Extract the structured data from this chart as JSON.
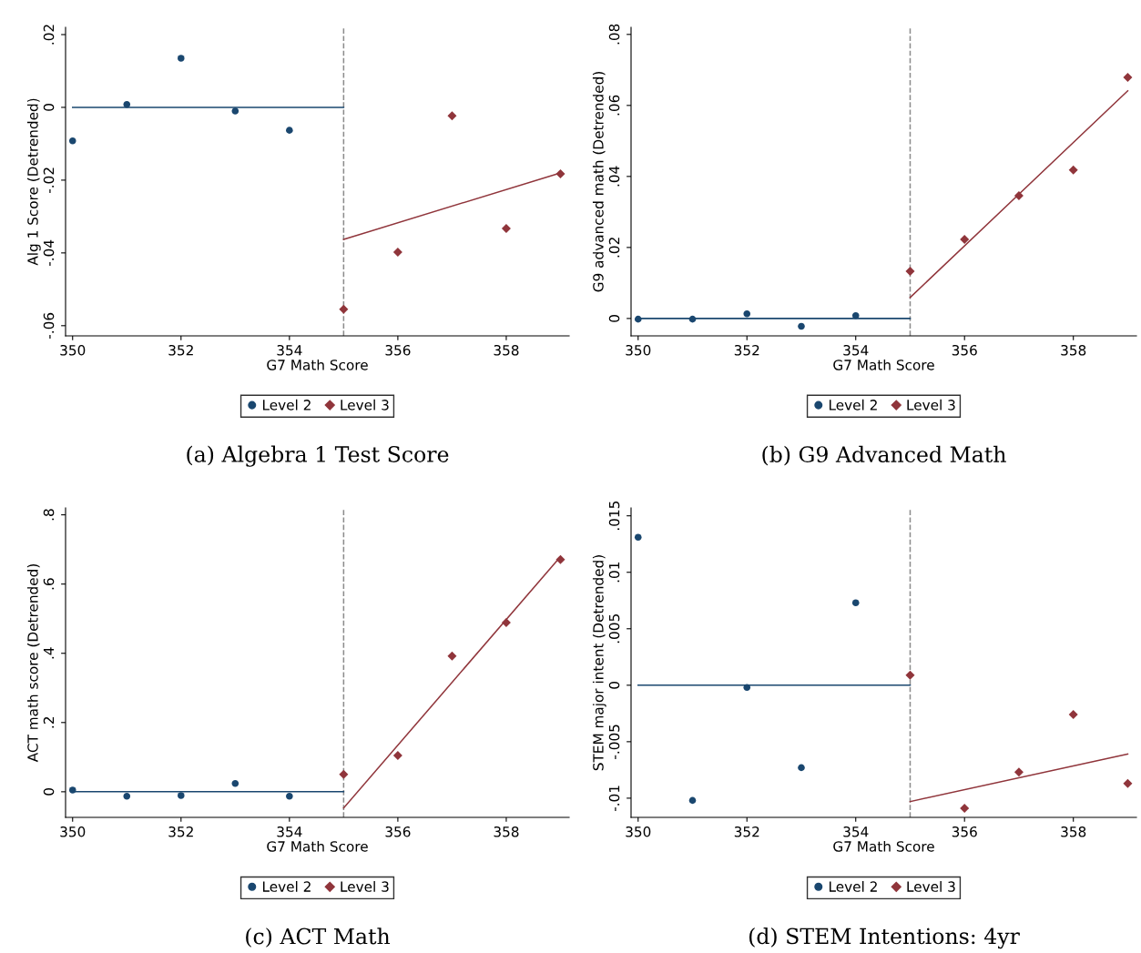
{
  "chart_data": [
    {
      "type": "scatter",
      "title": "(a) Algebra 1 Test Score",
      "xlabel": "G7 Math Score",
      "ylabel": "Alg 1 Score (Detrended)",
      "xlim": [
        349.87,
        359.16
      ],
      "ylim": [
        -0.0628,
        0.022
      ],
      "xticks": [
        350,
        352,
        354,
        356,
        358
      ],
      "yticks": [
        {
          "value": -0.06,
          "label": "-.06"
        },
        {
          "value": -0.04,
          "label": "-.04"
        },
        {
          "value": -0.02,
          "label": "-.02"
        },
        {
          "value": 0,
          "label": "0"
        },
        {
          "value": 0.02,
          "label": ".02"
        }
      ],
      "grid": false,
      "legend": "bottom",
      "ref_lines": [
        {
          "axis": "x",
          "value": 355,
          "color": "#8c8c8c",
          "line_style": "dashed"
        }
      ],
      "series": [
        {
          "name": "Level 2",
          "marker": "circle",
          "color": "#1a476f",
          "x": [
            350,
            351,
            352,
            353,
            354
          ],
          "values": [
            -0.0092,
            0.0008,
            0.0135,
            -0.001,
            -0.0063
          ]
        },
        {
          "name": "Level 3",
          "marker": "diamond",
          "color": "#90353b",
          "x": [
            355,
            356,
            357,
            358,
            359
          ],
          "values": [
            -0.0555,
            -0.0398,
            -0.0023,
            -0.0333,
            -0.0183
          ]
        },
        {
          "type": "line",
          "color": "#1a476f",
          "x": [
            350,
            355
          ],
          "values": [
            0,
            0
          ]
        },
        {
          "type": "line",
          "color": "#90353b",
          "x": [
            355,
            359
          ],
          "values": [
            -0.0363,
            -0.018
          ]
        }
      ]
    },
    {
      "type": "scatter",
      "title": "(b) G9 Advanced Math",
      "xlabel": "G7 Math Score",
      "ylabel": "G9 advanced math (Detrended)",
      "xlim": [
        349.87,
        359.16
      ],
      "ylim": [
        -0.0049,
        0.082
      ],
      "xticks": [
        350,
        352,
        354,
        356,
        358
      ],
      "yticks": [
        {
          "value": 0,
          "label": "0"
        },
        {
          "value": 0.02,
          "label": ".02"
        },
        {
          "value": 0.04,
          "label": ".04"
        },
        {
          "value": 0.06,
          "label": ".06"
        },
        {
          "value": 0.08,
          "label": ".08"
        }
      ],
      "grid": false,
      "legend": "bottom",
      "ref_lines": [
        {
          "axis": "x",
          "value": 355,
          "color": "#8c8c8c",
          "line_style": "dashed"
        }
      ],
      "series": [
        {
          "name": "Level 2",
          "marker": "circle",
          "color": "#1a476f",
          "x": [
            350,
            351,
            352,
            353,
            354
          ],
          "values": [
            -0.0002,
            -0.0002,
            0.0013,
            -0.0022,
            0.0008
          ]
        },
        {
          "name": "Level 3",
          "marker": "diamond",
          "color": "#90353b",
          "x": [
            355,
            356,
            357,
            358,
            359
          ],
          "values": [
            0.0133,
            0.0223,
            0.0346,
            0.0418,
            0.0679
          ]
        },
        {
          "type": "line",
          "color": "#1a476f",
          "x": [
            350,
            355
          ],
          "values": [
            0,
            0
          ]
        },
        {
          "type": "line",
          "color": "#90353b",
          "x": [
            355,
            359
          ],
          "values": [
            0.0059,
            0.0641
          ]
        }
      ]
    },
    {
      "type": "scatter",
      "title": "(c) ACT Math",
      "xlabel": "G7 Math Score",
      "ylabel": "ACT math score (Detrended)",
      "xlim": [
        349.87,
        359.16
      ],
      "ylim": [
        -0.074,
        0.82
      ],
      "xticks": [
        350,
        352,
        354,
        356,
        358
      ],
      "yticks": [
        {
          "value": 0,
          "label": "0"
        },
        {
          "value": 0.2,
          "label": ".2"
        },
        {
          "value": 0.4,
          "label": ".4"
        },
        {
          "value": 0.6,
          "label": ".6"
        },
        {
          "value": 0.8,
          "label": ".8"
        }
      ],
      "grid": false,
      "legend": "bottom",
      "ref_lines": [
        {
          "axis": "x",
          "value": 355,
          "color": "#8c8c8c",
          "line_style": "dashed"
        }
      ],
      "series": [
        {
          "name": "Level 2",
          "marker": "circle",
          "color": "#1a476f",
          "x": [
            350,
            351,
            352,
            353,
            354
          ],
          "values": [
            0.005,
            -0.013,
            -0.011,
            0.024,
            -0.013
          ]
        },
        {
          "name": "Level 3",
          "marker": "diamond",
          "color": "#90353b",
          "x": [
            355,
            356,
            357,
            358,
            359
          ],
          "values": [
            0.05,
            0.105,
            0.392,
            0.489,
            0.671
          ]
        },
        {
          "type": "line",
          "color": "#1a476f",
          "x": [
            350,
            355
          ],
          "values": [
            0,
            0
          ]
        },
        {
          "type": "line",
          "color": "#90353b",
          "x": [
            355,
            359
          ],
          "values": [
            -0.047,
            0.679
          ]
        }
      ]
    },
    {
      "type": "scatter",
      "title": "(d) STEM Intentions: 4yr",
      "xlabel": "G7 Math Score",
      "ylabel": "STEM major intent (Detrended)",
      "xlim": [
        349.87,
        359.16
      ],
      "ylim": [
        -0.0117,
        0.0157
      ],
      "xticks": [
        350,
        352,
        354,
        356,
        358
      ],
      "yticks": [
        {
          "value": -0.01,
          "label": "-.01"
        },
        {
          "value": -0.005,
          "label": "-.005"
        },
        {
          "value": 0,
          "label": "0"
        },
        {
          "value": 0.005,
          "label": ".005"
        },
        {
          "value": 0.01,
          "label": ".01"
        },
        {
          "value": 0.015,
          "label": ".015"
        }
      ],
      "grid": false,
      "legend": "bottom",
      "ref_lines": [
        {
          "axis": "x",
          "value": 355,
          "color": "#8c8c8c",
          "line_style": "dashed"
        }
      ],
      "series": [
        {
          "name": "Level 2",
          "marker": "circle",
          "color": "#1a476f",
          "x": [
            350,
            351,
            352,
            353,
            354
          ],
          "values": [
            0.0131,
            -0.0102,
            -0.0002,
            -0.0073,
            0.0073
          ]
        },
        {
          "name": "Level 3",
          "marker": "diamond",
          "color": "#90353b",
          "x": [
            355,
            356,
            357,
            358,
            359
          ],
          "values": [
            0.0009,
            -0.0109,
            -0.0077,
            -0.0026,
            -0.0087
          ]
        },
        {
          "type": "line",
          "color": "#1a476f",
          "x": [
            350,
            355
          ],
          "values": [
            0,
            0
          ]
        },
        {
          "type": "line",
          "color": "#90353b",
          "x": [
            355,
            359
          ],
          "values": [
            -0.0103,
            -0.0061
          ]
        }
      ]
    }
  ]
}
